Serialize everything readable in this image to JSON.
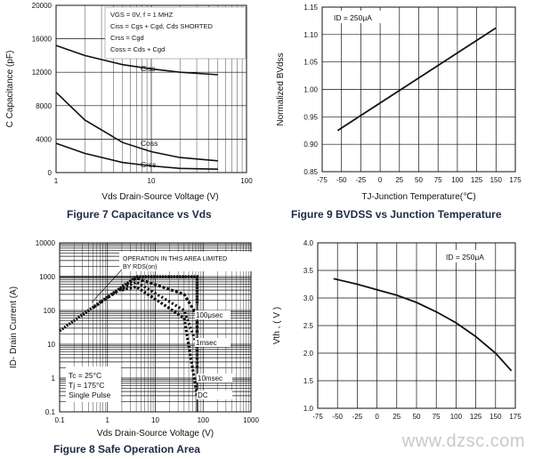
{
  "captions": {
    "fig7": "Figure 7 Capacitance vs Vds",
    "fig9": "Figure 9    BVDSS vs Junction Temperature",
    "fig8": "Figure 8    Safe Operation Area"
  },
  "watermark": "www.dzsc.com",
  "chart_data": [
    {
      "id": "fig7",
      "type": "line",
      "title": "Capacitance vs Vds",
      "xlabel": "Vds Drain-Source Voltage (V)",
      "ylabel": "C Capacitance (pF)",
      "xscale": "log",
      "xlim": [
        1,
        100
      ],
      "ylim": [
        0,
        20000
      ],
      "xticks": [
        1,
        10,
        100
      ],
      "yticks": [
        0,
        4000,
        8000,
        12000,
        16000,
        20000
      ],
      "annotations": [
        "VGS = 0V,    f = 1 MHZ",
        "Ciss = Cgs + Cgd,  Cds  SHORTED",
        "Crss = Cgd",
        "Coss = Cds + Cgd"
      ],
      "series": [
        {
          "name": "Ciss",
          "x": [
            1,
            2,
            5,
            10,
            20,
            50
          ],
          "y": [
            15200,
            14000,
            12900,
            12400,
            12000,
            11700
          ]
        },
        {
          "name": "Coss",
          "x": [
            1,
            2,
            5,
            10,
            20,
            50
          ],
          "y": [
            9600,
            6300,
            3600,
            2500,
            1800,
            1400
          ]
        },
        {
          "name": "Crss",
          "x": [
            1,
            2,
            5,
            10,
            20,
            50
          ],
          "y": [
            3500,
            2300,
            1200,
            800,
            500,
            400
          ]
        }
      ]
    },
    {
      "id": "fig9",
      "type": "line",
      "title": "BVDSS vs Junction Temperature",
      "xlabel": "TJ-Junction Temperature(℃)",
      "ylabel": "Normalized BVdss",
      "xlim": [
        -75,
        175
      ],
      "ylim": [
        0.85,
        1.15
      ],
      "xticks": [
        -75,
        -50,
        -25,
        0,
        25,
        50,
        75,
        100,
        125,
        150,
        175
      ],
      "yticks": [
        0.85,
        0.9,
        0.95,
        1.0,
        1.05,
        1.1,
        1.15
      ],
      "annotations": [
        "ID = 250μA"
      ],
      "series": [
        {
          "name": "BVdss",
          "x": [
            -55,
            150
          ],
          "y": [
            0.925,
            1.112
          ]
        }
      ]
    },
    {
      "id": "fig8",
      "type": "line",
      "title": "Safe Operation Area",
      "xlabel": "Vds Drain-Source Voltage (V)",
      "ylabel": "ID- Drain Current (A)",
      "xscale": "log",
      "yscale": "log",
      "xlim": [
        0.1,
        1000
      ],
      "ylim": [
        0.1,
        10000
      ],
      "xticks": [
        0.1,
        1,
        10,
        100,
        1000
      ],
      "yticks": [
        0.1,
        1,
        10,
        100,
        1000,
        10000
      ],
      "annotations": [
        "OPERATION IN THIS AREA LIMITED BY RDS(on)",
        "Tc = 25°C",
        "Tj = 175°C",
        "Single Pulse"
      ],
      "series": [
        {
          "name": "100μsec",
          "x": [
            0.1,
            4,
            75,
            75
          ],
          "y": [
            25,
            1000,
            1000,
            150
          ]
        },
        {
          "name": "1msec",
          "x": [
            0.5,
            4,
            40,
            75,
            75
          ],
          "y": [
            120,
            900,
            300,
            70,
            20
          ]
        },
        {
          "name": "10msec",
          "x": [
            1.5,
            4,
            40,
            75,
            75
          ],
          "y": [
            350,
            700,
            100,
            9,
            2
          ]
        },
        {
          "name": "DC",
          "x": [
            2,
            4,
            40,
            75
          ],
          "y": [
            400,
            500,
            60,
            0.3
          ]
        }
      ]
    },
    {
      "id": "fig10",
      "type": "line",
      "title": "",
      "xlabel": "",
      "ylabel": "Vth , ( V )",
      "xlim": [
        -75,
        175
      ],
      "ylim": [
        1.0,
        4.0
      ],
      "xticks": [
        -75,
        -50,
        -25,
        0,
        25,
        50,
        75,
        100,
        125,
        150,
        175
      ],
      "yticks": [
        1.0,
        1.5,
        2.0,
        2.5,
        3.0,
        3.5,
        4.0
      ],
      "annotations": [
        "ID = 250μA"
      ],
      "series": [
        {
          "name": "Vth",
          "x": [
            -55,
            -25,
            0,
            25,
            50,
            75,
            100,
            125,
            150,
            170
          ],
          "y": [
            3.35,
            3.25,
            3.15,
            3.05,
            2.92,
            2.75,
            2.55,
            2.3,
            2.0,
            1.68
          ]
        }
      ]
    }
  ]
}
